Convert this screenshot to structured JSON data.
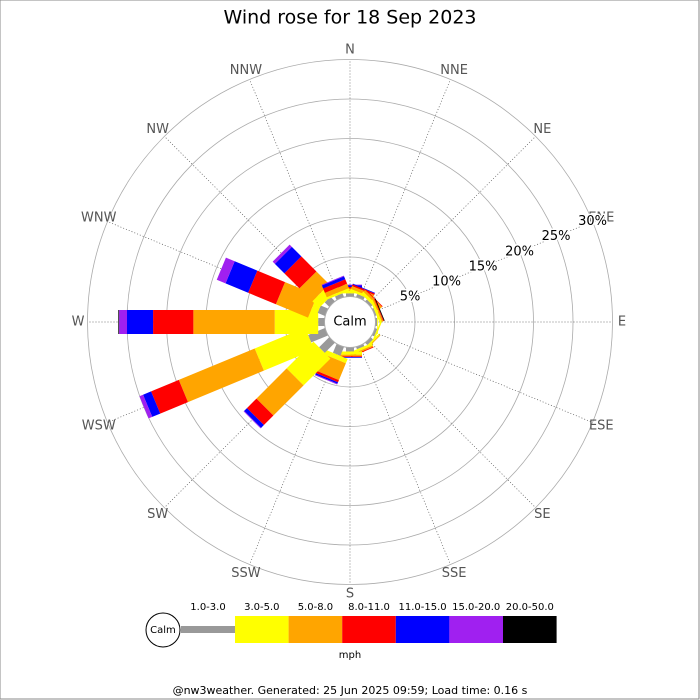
{
  "chart_data": {
    "type": "windrose",
    "title": "Wind rose for 18 Sep 2023",
    "directions": [
      "N",
      "NNE",
      "NE",
      "ENE",
      "E",
      "ESE",
      "SE",
      "SSE",
      "S",
      "SSW",
      "SW",
      "WSW",
      "W",
      "WNW",
      "NW",
      "NNW"
    ],
    "calm_label": "Calm",
    "unit": "mph",
    "rlim": [
      0,
      30
    ],
    "rticks": [
      {
        "value": 5,
        "label": "5%"
      },
      {
        "value": 10,
        "label": "10%"
      },
      {
        "value": 15,
        "label": "15%"
      },
      {
        "value": 20,
        "label": "20%"
      },
      {
        "value": 25,
        "label": "25%"
      },
      {
        "value": 30,
        "label": "30%"
      }
    ],
    "series": [
      {
        "name": "1.0-3.0",
        "color": "#999999",
        "values": [
          0.4,
          0.4,
          0.3,
          0.2,
          0.2,
          0.3,
          0.4,
          0.3,
          0.5,
          1.2,
          1.8,
          2.3,
          0.8,
          1.0,
          0.8,
          0.5
        ]
      },
      {
        "name": "3.0-5.0",
        "color": "#ffff00",
        "values": [
          0.3,
          0.3,
          0.4,
          0.3,
          0.1,
          0.2,
          0.2,
          0.3,
          0.4,
          0.6,
          4.8,
          6.9,
          5.5,
          0.9,
          1.2,
          0.3
        ]
      },
      {
        "name": "5.0-8.0",
        "color": "#ffa500",
        "values": [
          0.3,
          0.4,
          0.3,
          0.2,
          0,
          0,
          0.1,
          0.2,
          0.2,
          2.3,
          5.4,
          10.4,
          10.3,
          4.4,
          2.3,
          0.6
        ]
      },
      {
        "name": "8.0-11.0",
        "color": "#ff0000",
        "values": [
          0.2,
          0.2,
          0.1,
          0.1,
          0,
          0,
          0,
          0.1,
          0.1,
          0.3,
          1.7,
          3.8,
          5.1,
          3.8,
          2.7,
          0.6
        ]
      },
      {
        "name": "11.0-15.0",
        "color": "#0000ff",
        "values": [
          0.2,
          0.1,
          0,
          0,
          0,
          0,
          0,
          0,
          0.1,
          0.2,
          0.5,
          1.1,
          3.3,
          3.1,
          1.7,
          0.4
        ]
      },
      {
        "name": "15.0-20.0",
        "color": "#a020f0",
        "values": [
          0.1,
          0,
          0,
          0,
          0,
          0,
          0,
          0,
          0,
          0.1,
          0.1,
          0.5,
          1.0,
          1.2,
          0.4,
          0.1
        ]
      },
      {
        "name": "20.0-50.0",
        "color": "#000000",
        "values": [
          0,
          0,
          0,
          0.1,
          0,
          0,
          0,
          0,
          0,
          0,
          0,
          0,
          0.1,
          0,
          0,
          0
        ]
      }
    ]
  },
  "footer": "@nw3weather. Generated: 25 Jun 2025 09:59; Load time: 0.16 s"
}
